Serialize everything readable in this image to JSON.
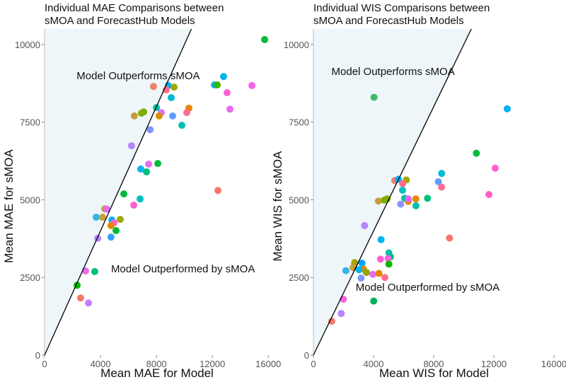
{
  "chart_data": [
    {
      "type": "scatter",
      "title_lines": [
        "Individual MAE Comparisons between",
        "sMOA and ForecastHub Models"
      ],
      "xlabel": "Mean MAE for Model",
      "ylabel": "Mean MAE for sMOA",
      "xlim": [
        0,
        16900
      ],
      "ylim": [
        0,
        10500
      ],
      "xticks": [
        0,
        4000,
        8000,
        12000,
        16000
      ],
      "yticks": [
        0,
        2500,
        5000,
        7500,
        10000
      ],
      "grid": false,
      "reference_line": "y = x",
      "shaded_region_color": "#eef6fa",
      "annotations": [
        {
          "text": "Model Outperforms sMOA",
          "x": 6700,
          "y": 9000
        },
        {
          "text": "Model Outperformed by sMOA",
          "x": 9900,
          "y": 2780
        }
      ],
      "points": [
        {
          "x": 15740,
          "y": 10160,
          "color": "#00ba38"
        },
        {
          "x": 12800,
          "y": 8970,
          "color": "#00b4ef"
        },
        {
          "x": 12150,
          "y": 8700,
          "color": "#00b0f6"
        },
        {
          "x": 12350,
          "y": 8700,
          "color": "#39b600"
        },
        {
          "x": 14830,
          "y": 8680,
          "color": "#f564e3"
        },
        {
          "x": 13050,
          "y": 8450,
          "color": "#fd61d1"
        },
        {
          "x": 13260,
          "y": 7920,
          "color": "#e76bf3"
        },
        {
          "x": 7790,
          "y": 8650,
          "color": "#e58700"
        },
        {
          "x": 7790,
          "y": 8650,
          "color": "#e9846f"
        },
        {
          "x": 8850,
          "y": 8680,
          "color": "#00b0f6"
        },
        {
          "x": 9260,
          "y": 8630,
          "color": "#a3a500"
        },
        {
          "x": 8700,
          "y": 8540,
          "color": "#ff6c91"
        },
        {
          "x": 9060,
          "y": 8290,
          "color": "#00bcd8"
        },
        {
          "x": 8000,
          "y": 7970,
          "color": "#00bfa0"
        },
        {
          "x": 10320,
          "y": 7950,
          "color": "#e58700"
        },
        {
          "x": 10170,
          "y": 7810,
          "color": "#ff6c91"
        },
        {
          "x": 8350,
          "y": 7810,
          "color": "#dc71fa"
        },
        {
          "x": 6930,
          "y": 7790,
          "color": "#7cae00"
        },
        {
          "x": 7090,
          "y": 7830,
          "color": "#7cae00"
        },
        {
          "x": 6420,
          "y": 7700,
          "color": "#c99e3a"
        },
        {
          "x": 8190,
          "y": 7700,
          "color": "#d89000"
        },
        {
          "x": 9160,
          "y": 7700,
          "color": "#619cff"
        },
        {
          "x": 9820,
          "y": 7400,
          "color": "#00c1aa"
        },
        {
          "x": 7550,
          "y": 7260,
          "color": "#7f96ff"
        },
        {
          "x": 6220,
          "y": 6740,
          "color": "#b983ff"
        },
        {
          "x": 7440,
          "y": 6150,
          "color": "#e76bf3"
        },
        {
          "x": 8100,
          "y": 6170,
          "color": "#00ba38"
        },
        {
          "x": 6880,
          "y": 5990,
          "color": "#00b4ef"
        },
        {
          "x": 7290,
          "y": 5900,
          "color": "#00bf7d"
        },
        {
          "x": 5670,
          "y": 5190,
          "color": "#00ba38"
        },
        {
          "x": 6830,
          "y": 5030,
          "color": "#00bfc4"
        },
        {
          "x": 6380,
          "y": 4830,
          "color": "#fd61d1"
        },
        {
          "x": 12400,
          "y": 5300,
          "color": "#f8766d"
        },
        {
          "x": 4300,
          "y": 4710,
          "color": "#c99e3a"
        },
        {
          "x": 4450,
          "y": 4700,
          "color": "#e76bf3"
        },
        {
          "x": 3690,
          "y": 4440,
          "color": "#35b5e5"
        },
        {
          "x": 4150,
          "y": 4440,
          "color": "#c99e3a"
        },
        {
          "x": 4810,
          "y": 4350,
          "color": "#00b0f6"
        },
        {
          "x": 5410,
          "y": 4370,
          "color": "#a3a500"
        },
        {
          "x": 4960,
          "y": 4260,
          "color": "#fd61d1"
        },
        {
          "x": 4750,
          "y": 4170,
          "color": "#e58700"
        },
        {
          "x": 5110,
          "y": 4010,
          "color": "#00ba38"
        },
        {
          "x": 4750,
          "y": 3800,
          "color": "#35a2ff"
        },
        {
          "x": 3800,
          "y": 3760,
          "color": "#b983ff"
        },
        {
          "x": 2930,
          "y": 2710,
          "color": "#e76bf3"
        },
        {
          "x": 3590,
          "y": 2690,
          "color": "#00bf7d"
        },
        {
          "x": 2330,
          "y": 2250,
          "color": "#00ba00"
        },
        {
          "x": 2580,
          "y": 1840,
          "color": "#f8766d"
        },
        {
          "x": 3140,
          "y": 1680,
          "color": "#c77cff"
        }
      ]
    },
    {
      "type": "scatter",
      "title_lines": [
        "Individual WIS Comparisons between",
        "sMOA and ForecastHub Models"
      ],
      "xlabel": "Mean WIS for Model",
      "ylabel": "Mean WIS for sMOA",
      "xlim": [
        0,
        16800
      ],
      "ylim": [
        0,
        10500
      ],
      "xticks": [
        0,
        4000,
        8000,
        12000,
        16000
      ],
      "yticks": [
        0,
        2500,
        5000,
        7500,
        10000
      ],
      "grid": false,
      "reference_line": "y = x",
      "shaded_region_color": "#eef6fa",
      "annotations": [
        {
          "text": "Model Outperforms sMOA",
          "x": 5300,
          "y": 9130
        },
        {
          "text": "Model Outperformed by sMOA",
          "x": 7600,
          "y": 2190
        }
      ],
      "points": [
        {
          "x": 4030,
          "y": 8300,
          "color": "#3cba6a"
        },
        {
          "x": 12890,
          "y": 7930,
          "color": "#00b0f6"
        },
        {
          "x": 10840,
          "y": 6500,
          "color": "#00ba38"
        },
        {
          "x": 12090,
          "y": 6020,
          "color": "#fd61d1"
        },
        {
          "x": 11670,
          "y": 5170,
          "color": "#ff61c3"
        },
        {
          "x": 8530,
          "y": 5850,
          "color": "#00bcd8"
        },
        {
          "x": 8310,
          "y": 5580,
          "color": "#619cff"
        },
        {
          "x": 8520,
          "y": 5410,
          "color": "#ff6c91"
        },
        {
          "x": 7590,
          "y": 5050,
          "color": "#00bf7d"
        },
        {
          "x": 5410,
          "y": 5620,
          "color": "#e9846f"
        },
        {
          "x": 5650,
          "y": 5660,
          "color": "#00b0f6"
        },
        {
          "x": 6180,
          "y": 5640,
          "color": "#a3a500"
        },
        {
          "x": 5930,
          "y": 5520,
          "color": "#ff6c91"
        },
        {
          "x": 5930,
          "y": 5310,
          "color": "#00bfc4"
        },
        {
          "x": 6070,
          "y": 5050,
          "color": "#00c1aa"
        },
        {
          "x": 6310,
          "y": 4950,
          "color": "#d89000"
        },
        {
          "x": 6320,
          "y": 5030,
          "color": "#e76bf3"
        },
        {
          "x": 6810,
          "y": 5030,
          "color": "#e58700"
        },
        {
          "x": 6820,
          "y": 4810,
          "color": "#00c1aa"
        },
        {
          "x": 5800,
          "y": 4860,
          "color": "#9590ff"
        },
        {
          "x": 4320,
          "y": 4960,
          "color": "#c99e3a"
        },
        {
          "x": 4720,
          "y": 4990,
          "color": "#7cae00"
        },
        {
          "x": 4910,
          "y": 5030,
          "color": "#7cae00"
        },
        {
          "x": 3400,
          "y": 4170,
          "color": "#b983ff"
        },
        {
          "x": 4500,
          "y": 3720,
          "color": "#00b4ef"
        },
        {
          "x": 9050,
          "y": 3770,
          "color": "#f8766d"
        },
        {
          "x": 5020,
          "y": 3290,
          "color": "#00c1aa"
        },
        {
          "x": 5130,
          "y": 3160,
          "color": "#00bf7d"
        },
        {
          "x": 4460,
          "y": 3090,
          "color": "#fd61d1"
        },
        {
          "x": 4970,
          "y": 3110,
          "color": "#f564e3"
        },
        {
          "x": 5020,
          "y": 2930,
          "color": "#00ba00"
        },
        {
          "x": 2740,
          "y": 2980,
          "color": "#a3a500"
        },
        {
          "x": 2640,
          "y": 2820,
          "color": "#c99e3a"
        },
        {
          "x": 3230,
          "y": 2960,
          "color": "#00a5ff"
        },
        {
          "x": 3330,
          "y": 2770,
          "color": "#e58700"
        },
        {
          "x": 3030,
          "y": 2750,
          "color": "#00b4ef"
        },
        {
          "x": 2160,
          "y": 2720,
          "color": "#35b5e5"
        },
        {
          "x": 3530,
          "y": 2660,
          "color": "#8fa800"
        },
        {
          "x": 3950,
          "y": 2600,
          "color": "#e76bf3"
        },
        {
          "x": 4360,
          "y": 2630,
          "color": "#e58700"
        },
        {
          "x": 4750,
          "y": 2500,
          "color": "#ff6c91"
        },
        {
          "x": 3170,
          "y": 2480,
          "color": "#7f96ff"
        },
        {
          "x": 1990,
          "y": 1800,
          "color": "#f564e3"
        },
        {
          "x": 4010,
          "y": 1740,
          "color": "#00b159"
        },
        {
          "x": 1850,
          "y": 1340,
          "color": "#b983ff"
        },
        {
          "x": 1220,
          "y": 1090,
          "color": "#f8766d"
        }
      ]
    }
  ]
}
